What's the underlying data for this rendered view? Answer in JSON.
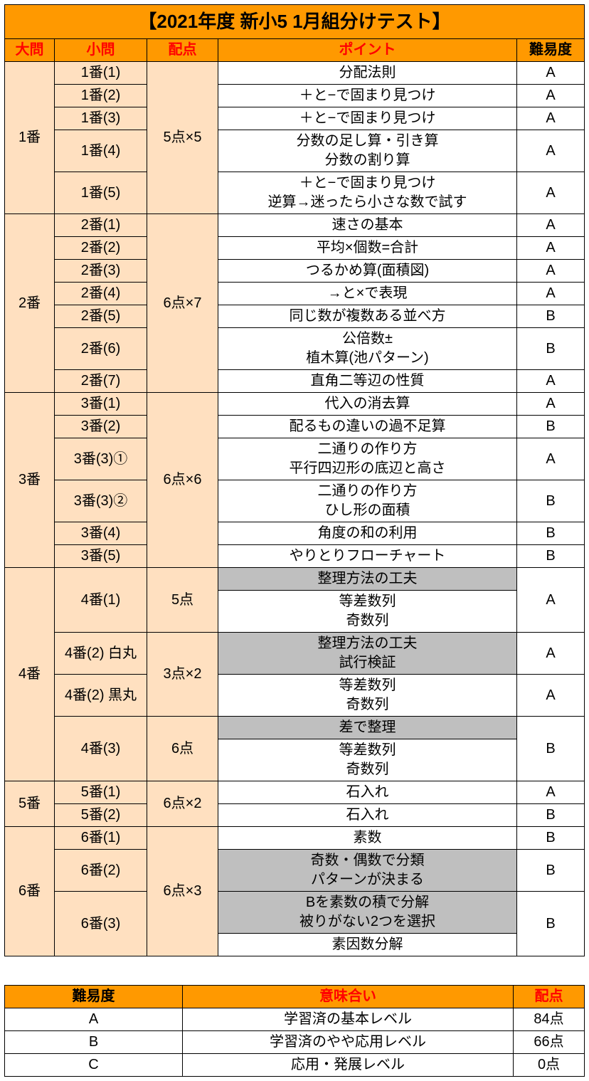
{
  "title": "【2021年度 新小5 1月組分けテスト】",
  "main_headers": {
    "daimon": "大問",
    "shomon": "小問",
    "haiten": "配点",
    "point": "ポイント",
    "diff": "難易度"
  },
  "section1": {
    "daimon": "1番",
    "haiten": "5点×5",
    "rows": [
      {
        "shomon": "1番(1)",
        "point": "分配法則",
        "diff": "A"
      },
      {
        "shomon": "1番(2)",
        "point": "＋と−で固まり見つけ",
        "diff": "A"
      },
      {
        "shomon": "1番(3)",
        "point": "＋と−で固まり見つけ",
        "diff": "A"
      },
      {
        "shomon": "1番(4)",
        "point": "分数の足し算・引き算\n分数の割り算",
        "diff": "A"
      },
      {
        "shomon": "1番(5)",
        "point": "＋と−で固まり見つけ\n逆算→迷ったら小さな数で試す",
        "diff": "A"
      }
    ]
  },
  "section2": {
    "daimon": "2番",
    "haiten": "6点×7",
    "rows": [
      {
        "shomon": "2番(1)",
        "point": "速さの基本",
        "diff": "A"
      },
      {
        "shomon": "2番(2)",
        "point": "平均×個数=合計",
        "diff": "A"
      },
      {
        "shomon": "2番(3)",
        "point": "つるかめ算(面積図)",
        "diff": "A"
      },
      {
        "shomon": "2番(4)",
        "point": "→と×で表現",
        "diff": "A"
      },
      {
        "shomon": "2番(5)",
        "point": "同じ数が複数ある並べ方",
        "diff": "B"
      },
      {
        "shomon": "2番(6)",
        "point": "公倍数±\n植木算(池パターン)",
        "diff": "B"
      },
      {
        "shomon": "2番(7)",
        "point": "直角二等辺の性質",
        "diff": "A"
      }
    ]
  },
  "section3": {
    "daimon": "3番",
    "haiten": "6点×6",
    "rows": [
      {
        "shomon": "3番(1)",
        "point": "代入の消去算",
        "diff": "A"
      },
      {
        "shomon": "3番(2)",
        "point": "配るもの違いの過不足算",
        "diff": "B"
      },
      {
        "shomon": "3番(3)①",
        "point": "二通りの作り方\n平行四辺形の底辺と高さ",
        "diff": "A"
      },
      {
        "shomon": "3番(3)②",
        "point": "二通りの作り方\nひし形の面積",
        "diff": "B"
      },
      {
        "shomon": "3番(4)",
        "point": "角度の和の利用",
        "diff": "B"
      },
      {
        "shomon": "3番(5)",
        "point": "やりとりフローチャート",
        "diff": "B"
      }
    ]
  },
  "section4": {
    "daimon": "4番",
    "sub1": {
      "shomon": "4番(1)",
      "haiten": "5点",
      "gray": "整理方法の工夫",
      "white": "等差数列\n奇数列",
      "diff": "A"
    },
    "sub2": {
      "shomon_a": "4番(2) 白丸",
      "shomon_b": "4番(2) 黒丸",
      "haiten": "3点×2",
      "gray_a": "整理方法の工夫\n試行検証",
      "diff_a": "A",
      "white_b": "等差数列\n奇数列",
      "diff_b": "A"
    },
    "sub3": {
      "shomon": "4番(3)",
      "haiten": "6点",
      "gray": "差で整理",
      "white": "等差数列\n奇数列",
      "diff": "B"
    }
  },
  "section5": {
    "daimon": "5番",
    "haiten": "6点×2",
    "rows": [
      {
        "shomon": "5番(1)",
        "point": "石入れ",
        "diff": "A"
      },
      {
        "shomon": "5番(2)",
        "point": "石入れ",
        "diff": "B"
      }
    ]
  },
  "section6": {
    "daimon": "6番",
    "haiten": "6点×3",
    "row1": {
      "shomon": "6番(1)",
      "point": "素数",
      "diff": "B"
    },
    "row2": {
      "shomon": "6番(2)",
      "gray": "奇数・偶数で分類\nパターンが決まる",
      "diff": "B"
    },
    "row3": {
      "shomon": "6番(3)",
      "gray": "Bを素数の積で分解\n被りがない2つを選択",
      "white": "素因数分解",
      "diff": "B"
    }
  },
  "legend": {
    "headers": {
      "diff": "難易度",
      "meaning": "意味合い",
      "haiten": "配点"
    },
    "rows": [
      {
        "diff": "A",
        "meaning": "学習済の基本レベル",
        "haiten": "84点"
      },
      {
        "diff": "B",
        "meaning": "学習済のやや応用レベル",
        "haiten": "66点"
      },
      {
        "diff": "C",
        "meaning": "応用・発展レベル",
        "haiten": "0点"
      }
    ]
  }
}
